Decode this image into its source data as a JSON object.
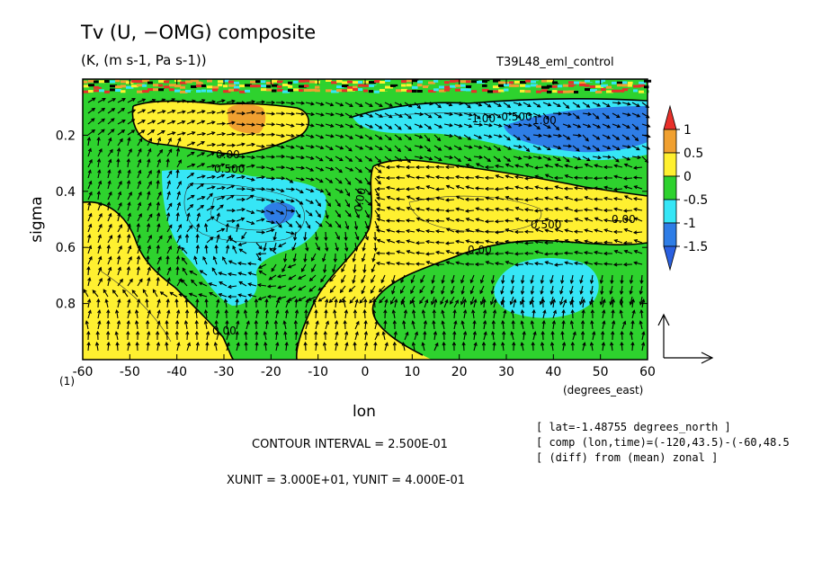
{
  "figure": {
    "title": "Tv (U, −OMG) composite",
    "units": "(K, (m s-1, Pa s-1))",
    "experiment": "T39L48_eml_control",
    "info_lines": [
      "[ lat=-1.48755 degrees_north ]",
      "[ comp (lon,time)=(-120,43.5)-(-60,48.5",
      "[ (diff) from (mean) zonal ]"
    ],
    "contour_interval": "CONTOUR INTERVAL = 2.500E-01",
    "vector_units": "XUNIT = 3.000E+01, YUNIT = 4.000E-01",
    "frame_index": "(1)",
    "x_units": "(degrees_east)",
    "colors": {
      "red": "#e8302a",
      "orange": "#f0a030",
      "yellow": "#fff030",
      "green": "#2ed22e",
      "cyan": "#36e6f6",
      "blue": "#2e7de6",
      "darkblue": "#2a60e0"
    }
  },
  "chart_data": {
    "type": "heatmap",
    "variable": "Tv",
    "overlay": "vector field (U, -OMG)",
    "xlabel": "lon",
    "ylabel": "sigma",
    "xlim": [
      -60,
      60
    ],
    "ylim": [
      1.0,
      0.0
    ],
    "y_reversed": true,
    "x_ticks": [
      -60,
      -50,
      -40,
      -30,
      -20,
      -10,
      0,
      10,
      20,
      30,
      40,
      50,
      60
    ],
    "y_ticks": [
      0.2,
      0.4,
      0.6,
      0.8
    ],
    "colorbar": {
      "levels": [
        -1.5,
        -1,
        -0.5,
        0,
        0.5,
        1
      ],
      "tick_labels": [
        "1",
        "0.5",
        "0",
        "-0.5",
        "-1",
        "-1.5"
      ],
      "bins": [
        {
          "range": ">1",
          "color": "red"
        },
        {
          "range": "0.5 to 1",
          "color": "orange"
        },
        {
          "range": "0 to 0.5",
          "color": "yellow"
        },
        {
          "range": "-0.5 to 0",
          "color": "green"
        },
        {
          "range": "-1 to -0.5",
          "color": "cyan"
        },
        {
          "range": "-1.5 to -1",
          "color": "blue"
        },
        {
          "range": "<-1.5",
          "color": "darkblue"
        }
      ]
    },
    "contour_labels": [
      "0.00",
      "0.500",
      "1.00",
      "-0.500",
      "-1.00"
    ],
    "regions": [
      {
        "color": "green",
        "lon_range": [
          -60,
          60
        ],
        "sigma_range": [
          0.08,
          1.0
        ]
      },
      {
        "color": "yellow",
        "lon_range": [
          -60,
          -40
        ],
        "sigma_range": [
          0.45,
          1.0
        ]
      },
      {
        "color": "yellow",
        "lon_range": [
          -45,
          -5
        ],
        "sigma_range": [
          0.08,
          0.2
        ]
      },
      {
        "color": "orange",
        "lon_range": [
          -27,
          -18
        ],
        "sigma_range": [
          0.1,
          0.18
        ]
      },
      {
        "color": "cyan",
        "lon_range": [
          -43,
          -10
        ],
        "sigma_range": [
          0.3,
          0.8
        ]
      },
      {
        "color": "blue",
        "lon_range": [
          -23,
          -15
        ],
        "sigma_range": [
          0.48,
          0.56
        ]
      },
      {
        "color": "yellow",
        "lon_range": [
          -10,
          60
        ],
        "sigma_range": [
          0.3,
          1.0
        ]
      },
      {
        "color": "cyan",
        "lon_range": [
          0,
          60
        ],
        "sigma_range": [
          0.08,
          0.25
        ]
      },
      {
        "color": "blue",
        "lon_range": [
          35,
          60
        ],
        "sigma_range": [
          0.1,
          0.22
        ]
      },
      {
        "color": "cyan",
        "lon_range": [
          25,
          48
        ],
        "sigma_range": [
          0.68,
          0.88
        ]
      }
    ]
  }
}
